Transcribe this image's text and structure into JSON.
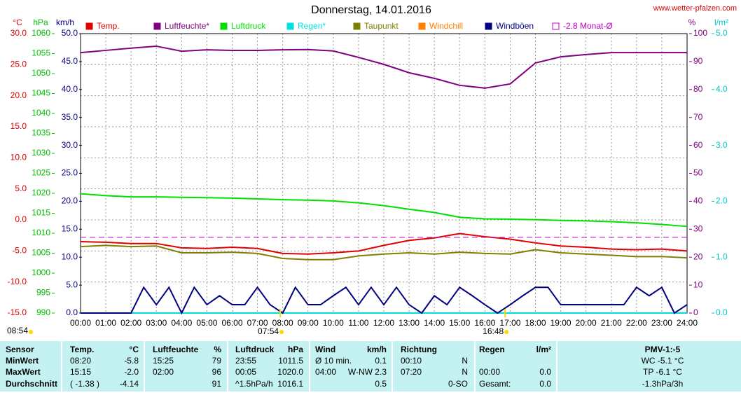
{
  "chart_data": {
    "type": "line",
    "title": "Donnerstag, 14.01.2016",
    "site": "www.wetter-pfalzen.com",
    "xlim": [
      0,
      24
    ],
    "xticks": [
      {
        "value": 0,
        "label": "00:00"
      },
      {
        "value": 1,
        "label": "01:00"
      },
      {
        "value": 2,
        "label": "02:00"
      },
      {
        "value": 3,
        "label": "03:00"
      },
      {
        "value": 4,
        "label": "04:00"
      },
      {
        "value": 5,
        "label": "05:00"
      },
      {
        "value": 6,
        "label": "06:00"
      },
      {
        "value": 7,
        "label": "07:00"
      },
      {
        "value": 8,
        "label": "08:00"
      },
      {
        "value": 9,
        "label": "09:00"
      },
      {
        "value": 10,
        "label": "10:00"
      },
      {
        "value": 11,
        "label": "11:00"
      },
      {
        "value": 12,
        "label": "12:00"
      },
      {
        "value": 13,
        "label": "13:00"
      },
      {
        "value": 14,
        "label": "14:00"
      },
      {
        "value": 15,
        "label": "15:00"
      },
      {
        "value": 16,
        "label": "16:00"
      },
      {
        "value": 17,
        "label": "17:00"
      },
      {
        "value": 18,
        "label": "18:00"
      },
      {
        "value": 19,
        "label": "19:00"
      },
      {
        "value": 20,
        "label": "20:00"
      },
      {
        "value": 21,
        "label": "21:00"
      },
      {
        "value": 22,
        "label": "22:00"
      },
      {
        "value": 23,
        "label": "23:00"
      },
      {
        "value": 24,
        "label": "24:00"
      }
    ],
    "grid": true,
    "axes": [
      {
        "label": "°C",
        "color": "#e00000",
        "lim": [
          -15,
          30
        ],
        "ticks": [
          {
            "value": 30,
            "label": "30.0"
          },
          {
            "value": 25,
            "label": "25.0"
          },
          {
            "value": 20,
            "label": "20.0"
          },
          {
            "value": 15,
            "label": "15.0"
          },
          {
            "value": 10,
            "label": "10.0"
          },
          {
            "value": 5,
            "label": "5.0"
          },
          {
            "value": 0,
            "label": "0.0"
          },
          {
            "value": -5,
            "label": "-5.0"
          },
          {
            "value": -10,
            "label": "-10.0"
          },
          {
            "value": -15,
            "label": "-15.0"
          }
        ]
      },
      {
        "label": "hPa",
        "color": "#00c000",
        "lim": [
          990,
          1060
        ],
        "ticks": [
          1060,
          1055,
          1050,
          1045,
          1040,
          1035,
          1030,
          1025,
          1020,
          1015,
          1010,
          1005,
          1000,
          995,
          990
        ]
      },
      {
        "label": "km/h",
        "color": "#000080",
        "lim": [
          0,
          50
        ],
        "ticks": [
          {
            "value": 50,
            "label": "50.0"
          },
          {
            "value": 45,
            "label": "45.0"
          },
          {
            "value": 40,
            "label": "40.0"
          },
          {
            "value": 35,
            "label": "35.0"
          },
          {
            "value": 30,
            "label": "30.0"
          },
          {
            "value": 25,
            "label": "25.0"
          },
          {
            "value": 20,
            "label": "20.0"
          },
          {
            "value": 15,
            "label": "15.0"
          },
          {
            "value": 10,
            "label": "10.0"
          },
          {
            "value": 5,
            "label": "5.0"
          },
          {
            "value": 0,
            "label": "0.0"
          }
        ]
      },
      {
        "label": "%",
        "color": "#800080",
        "lim": [
          0,
          100
        ],
        "ticks": [
          100,
          90,
          80,
          70,
          60,
          50,
          40,
          30,
          20,
          10,
          0
        ]
      },
      {
        "label": "l/m²",
        "color": "#00c8c8",
        "lim": [
          0,
          5
        ],
        "ticks": [
          {
            "value": 5,
            "label": "5.0"
          },
          {
            "value": 4,
            "label": "4.0"
          },
          {
            "value": 3,
            "label": "3.0"
          },
          {
            "value": 2,
            "label": "2.0"
          },
          {
            "value": 1,
            "label": "1.0"
          },
          {
            "value": 0,
            "label": "0.0"
          }
        ]
      }
    ],
    "x": [
      0,
      1,
      2,
      3,
      4,
      5,
      6,
      7,
      8,
      9,
      10,
      11,
      12,
      13,
      14,
      15,
      16,
      17,
      18,
      19,
      20,
      21,
      22,
      23,
      24
    ],
    "series": [
      {
        "name": "Temp.",
        "color": "#e00000",
        "axis": 0,
        "values": [
          -3.5,
          -3.6,
          -3.8,
          -3.8,
          -4.5,
          -4.6,
          -4.4,
          -4.6,
          -5.4,
          -5.5,
          -5.3,
          -5.0,
          -4.1,
          -3.3,
          -2.9,
          -2.2,
          -2.7,
          -3.1,
          -3.7,
          -4.2,
          -4.4,
          -4.7,
          -4.8,
          -4.7,
          -5.0
        ]
      },
      {
        "name": "Luftfeuchte*",
        "color": "#800080",
        "axis": 3,
        "values": [
          93.2,
          94,
          94.8,
          95.5,
          93.7,
          94.2,
          94,
          94,
          94.2,
          94.3,
          93.8,
          91.5,
          89,
          86,
          84,
          81.5,
          80.5,
          82,
          89.5,
          91.7,
          92.5,
          93.2,
          93.2,
          93.2,
          93.2
        ]
      },
      {
        "name": "Luftdruck",
        "color": "#00e000",
        "axis": 1,
        "values": [
          1019.9,
          1019.4,
          1019.1,
          1019.1,
          1019.0,
          1018.9,
          1018.8,
          1018.6,
          1018.4,
          1018.3,
          1018.1,
          1017.6,
          1016.9,
          1016.0,
          1015.2,
          1014.0,
          1013.6,
          1013.5,
          1013.4,
          1013.2,
          1013.1,
          1012.9,
          1012.6,
          1012.2,
          1011.7
        ]
      },
      {
        "name": "Regen*",
        "color": "#00e0e0",
        "axis": 4,
        "values": [
          0,
          0,
          0,
          0,
          0,
          0,
          0,
          0,
          0,
          0,
          0,
          0,
          0,
          0,
          0,
          0,
          0,
          0,
          0,
          0,
          0,
          0,
          0,
          0,
          0
        ]
      },
      {
        "name": "Taupunkt",
        "color": "#808000",
        "axis": 0,
        "values": [
          -4.3,
          -4.1,
          -4.3,
          -4.2,
          -5.3,
          -5.3,
          -5.2,
          -5.4,
          -6.2,
          -6.4,
          -6.4,
          -5.8,
          -5.5,
          -5.3,
          -5.5,
          -5.2,
          -5.4,
          -5.5,
          -4.8,
          -5.3,
          -5.5,
          -5.7,
          -5.9,
          -5.9,
          -6.1
        ]
      },
      {
        "name": "Windchill",
        "color": "#ff8000",
        "axis": 0
      },
      {
        "name": "Windböen",
        "color": "#000080",
        "axis": 2,
        "x": [
          0,
          0.5,
          1,
          1.5,
          2,
          2.5,
          3,
          3.5,
          4,
          4.5,
          5,
          5.5,
          6,
          6.5,
          7,
          7.5,
          8,
          8.5,
          9,
          9.5,
          10,
          10.5,
          11,
          11.5,
          12,
          12.5,
          13,
          13.5,
          14,
          14.5,
          15,
          15.5,
          16,
          16.5,
          17,
          17.5,
          18,
          18.5,
          19,
          19.5,
          20,
          20.5,
          21,
          21.5,
          22,
          22.5,
          23,
          23.5,
          24
        ],
        "values": [
          0,
          0,
          0,
          0,
          0,
          4.6,
          1.5,
          4.6,
          0,
          4.6,
          1.5,
          3.1,
          1.5,
          1.5,
          4.6,
          1.5,
          0,
          4.6,
          1.5,
          1.5,
          3.1,
          4.6,
          1.5,
          4.6,
          1.5,
          4.6,
          1.5,
          0,
          3.1,
          1.5,
          4.6,
          3.1,
          1.5,
          0,
          1.5,
          3.1,
          4.6,
          4.6,
          1.5,
          1.5,
          1.5,
          1.5,
          1.5,
          1.5,
          4.6,
          3.1,
          4.6,
          0,
          1.5
        ]
      },
      {
        "name": "-2.8 Monat-Ø",
        "color": "#c000c0",
        "axis": 0,
        "value": -2.8,
        "dashed": true
      }
    ],
    "left_note": "08:54",
    "annotations": [
      {
        "x": 7.9,
        "label": "07:54"
      },
      {
        "x": 16.8,
        "label": "16:48"
      }
    ]
  },
  "table": {
    "rows": [
      [
        "Sensor",
        "Temp.",
        "°C",
        "Luftfeuchte",
        "%",
        "Luftdruck",
        "hPa",
        "Wind",
        "km/h",
        "Richtung",
        null,
        "Regen",
        "l/m²",
        "PMV-1:-5"
      ],
      [
        "MinWert",
        "08:20",
        "-5.8",
        "15:25",
        "79",
        "23:55",
        "1011.5",
        "Ø 10 min.",
        "0.1",
        "00:10",
        "N",
        null,
        null,
        "WC -5.1 °C"
      ],
      [
        "MaxWert",
        "15:15",
        "-2.0",
        "02:00",
        "96",
        "00:05",
        "1020.0",
        "04:00",
        "W-NW 2.3",
        "07:20",
        "N",
        "00:00",
        "0.0",
        "TP -6.1 °C"
      ],
      [
        "Durchschnitt",
        "( -1.38 )",
        "-4.14",
        null,
        "91",
        "^1.5hPa/h",
        "1016.1",
        null,
        "0.5",
        null,
        "0-SO",
        "Gesamt:",
        "0.0",
        "-1.3hPa/3h"
      ]
    ]
  }
}
